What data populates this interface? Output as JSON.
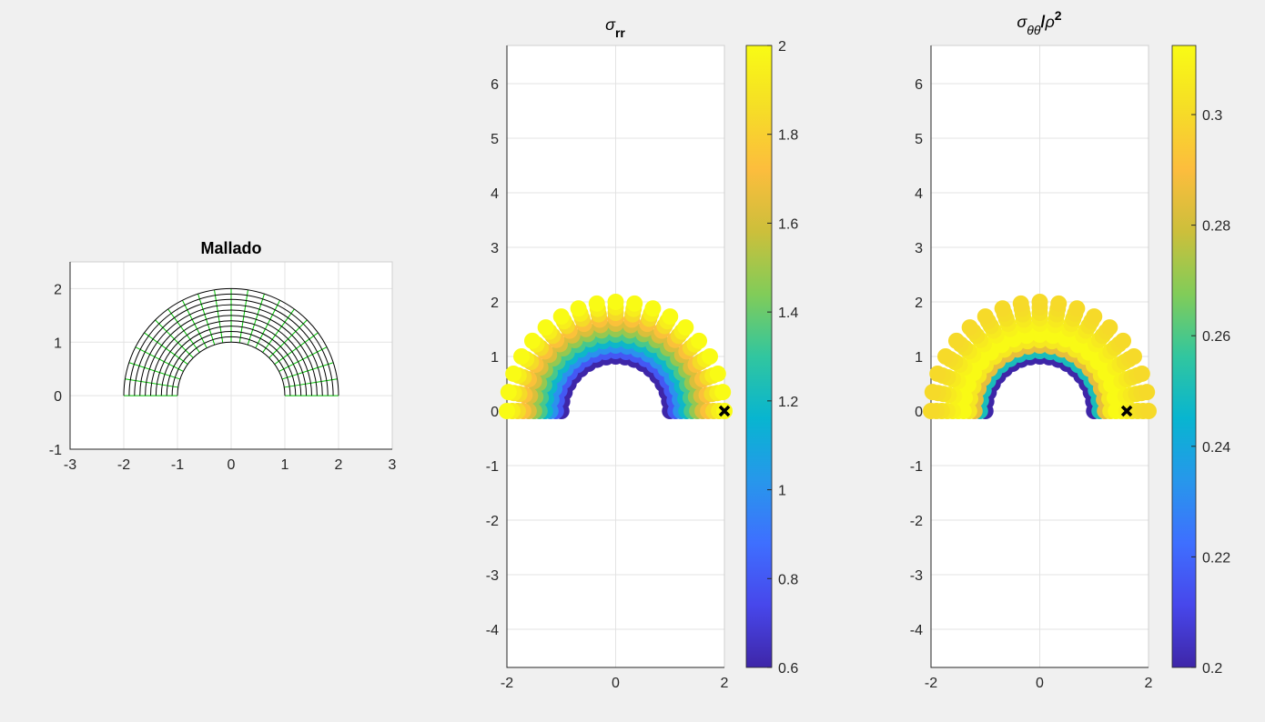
{
  "chart_data": [
    {
      "type": "mesh",
      "title": "Mallado",
      "radii": [
        1,
        1.1,
        1.2,
        1.3,
        1.4,
        1.5,
        1.6,
        1.7,
        1.8,
        1.9,
        2
      ],
      "angles_deg": [
        0,
        9,
        18,
        27,
        36,
        45,
        54,
        63,
        72,
        81,
        90,
        99,
        108,
        117,
        126,
        135,
        144,
        153,
        162,
        171,
        180
      ],
      "ring_color": "#000000",
      "radial_color": "#00c000",
      "xlim": [
        -3,
        3
      ],
      "ylim": [
        -1,
        2.5
      ],
      "xticks": [
        -3,
        -2,
        -1,
        0,
        1,
        2,
        3
      ],
      "yticks": [
        -1,
        0,
        1,
        2
      ],
      "grid": true
    },
    {
      "type": "polar-scatter",
      "title": [
        "σ",
        "rr"
      ],
      "r": [
        1,
        1.1,
        1.2,
        1.3,
        1.4,
        1.5,
        1.6,
        1.7,
        1.8,
        1.9,
        2
      ],
      "theta_deg": [
        0,
        10,
        20,
        30,
        40,
        50,
        60,
        70,
        80,
        90,
        100,
        110,
        120,
        130,
        140,
        150,
        160,
        170,
        180
      ],
      "values": [
        0.6,
        0.8,
        1.0,
        1.18,
        1.34,
        1.48,
        1.62,
        1.74,
        1.85,
        1.94,
        2.0
      ],
      "colormap": "parula",
      "clim": [
        0.6,
        2
      ],
      "cticks": [
        0.6,
        0.8,
        1,
        1.2,
        1.4,
        1.6,
        1.8,
        2
      ],
      "marker": {
        "x": 2,
        "y": 0
      },
      "xlim": [
        -2,
        2
      ],
      "ylim": [
        -4.7,
        6.7
      ],
      "xticks": [
        -2,
        0,
        2
      ],
      "yticks": [
        -4,
        -3,
        -2,
        -1,
        0,
        1,
        2,
        3,
        4,
        5,
        6
      ],
      "grid": true
    },
    {
      "type": "polar-scatter",
      "title": [
        "σ",
        "θθ",
        "/",
        "ρ",
        "2"
      ],
      "r": [
        1,
        1.1,
        1.2,
        1.3,
        1.4,
        1.5,
        1.6,
        1.7,
        1.8,
        1.9,
        2
      ],
      "theta_deg": [
        0,
        10,
        20,
        30,
        40,
        50,
        60,
        70,
        80,
        90,
        100,
        110,
        120,
        130,
        140,
        150,
        160,
        170,
        180
      ],
      "values": [
        0.2,
        0.25,
        0.285,
        0.305,
        0.312,
        0.312,
        0.309,
        0.306,
        0.303,
        0.301,
        0.3
      ],
      "colormap": "parula",
      "clim": [
        0.2,
        0.3125
      ],
      "cticks": [
        0.2,
        0.22,
        0.24,
        0.26,
        0.28,
        0.3
      ],
      "marker": {
        "x": 1.6,
        "y": 0
      },
      "xlim": [
        -2,
        2
      ],
      "ylim": [
        -4.7,
        6.7
      ],
      "xticks": [
        -2,
        0,
        2
      ],
      "yticks": [
        -4,
        -3,
        -2,
        -1,
        0,
        1,
        2,
        3,
        4,
        5,
        6
      ],
      "grid": true
    }
  ]
}
